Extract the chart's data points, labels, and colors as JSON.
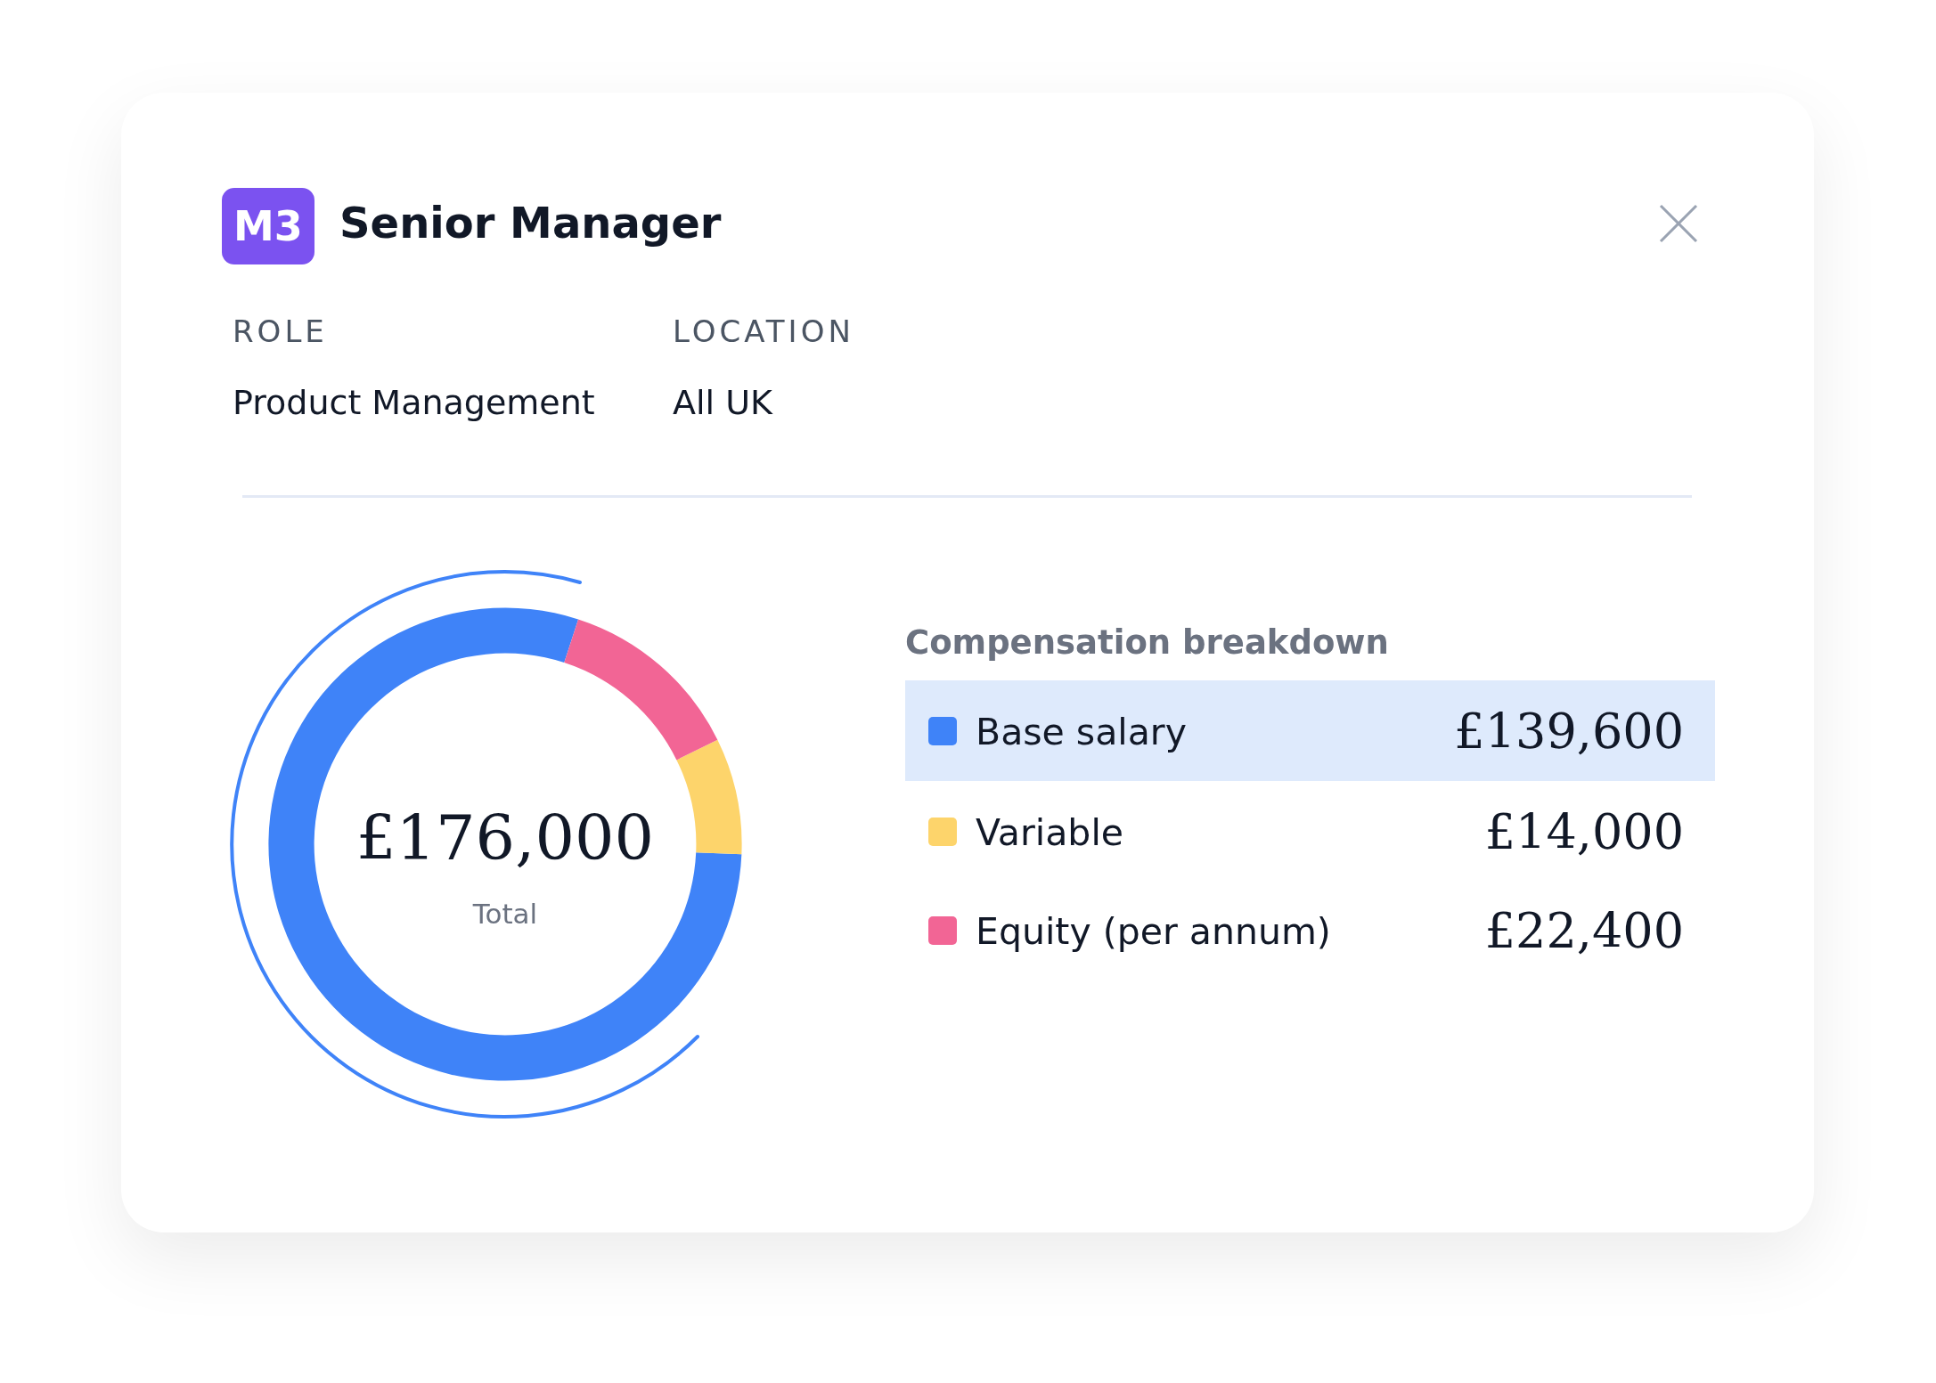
{
  "chart_data": {
    "type": "donut",
    "title": "Compensation breakdown",
    "categories": [
      "Base salary",
      "Variable",
      "Equity (per annum)"
    ],
    "values": [
      139600,
      14000,
      22400
    ],
    "colors": [
      "#3f83f8",
      "#fdd46b",
      "#f26595"
    ],
    "value_labels": [
      "£139,600",
      "£14,000",
      "£22,400"
    ],
    "legend": "right",
    "annotations": [
      "M3",
      "Senior Manager",
      "ROLE",
      "Product Management",
      "LOCATION",
      "All UK",
      "£176,000",
      "Total"
    ]
  }
}
